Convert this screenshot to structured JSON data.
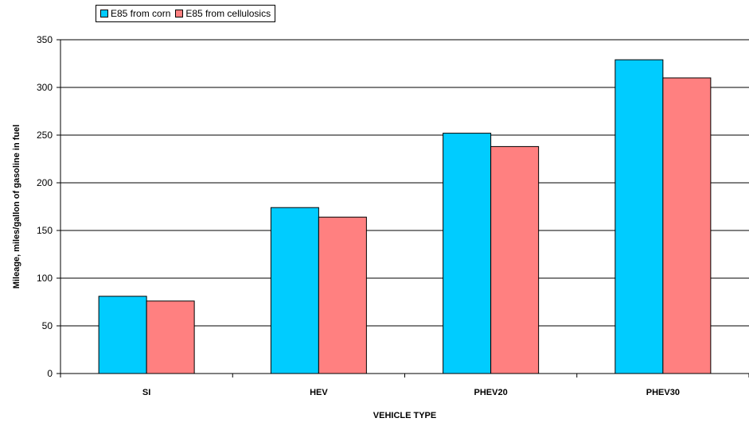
{
  "chart_data": {
    "type": "bar",
    "categories": [
      "SI",
      "HEV",
      "PHEV20",
      "PHEV30"
    ],
    "series": [
      {
        "name": "E85 from corn",
        "color": "#00ccff",
        "values": [
          81,
          174,
          252,
          329
        ]
      },
      {
        "name": "E85 from cellulosics",
        "color": "#ff8080",
        "values": [
          76,
          164,
          238,
          310
        ]
      }
    ],
    "xlabel": "VEHICLE TYPE",
    "ylabel": "Mileage, miles/gallon of gasoline in fuel",
    "ylim": [
      0,
      350
    ],
    "yticks": [
      0,
      50,
      100,
      150,
      200,
      250,
      300,
      350
    ],
    "grid": true,
    "legend_position": "top-left"
  }
}
